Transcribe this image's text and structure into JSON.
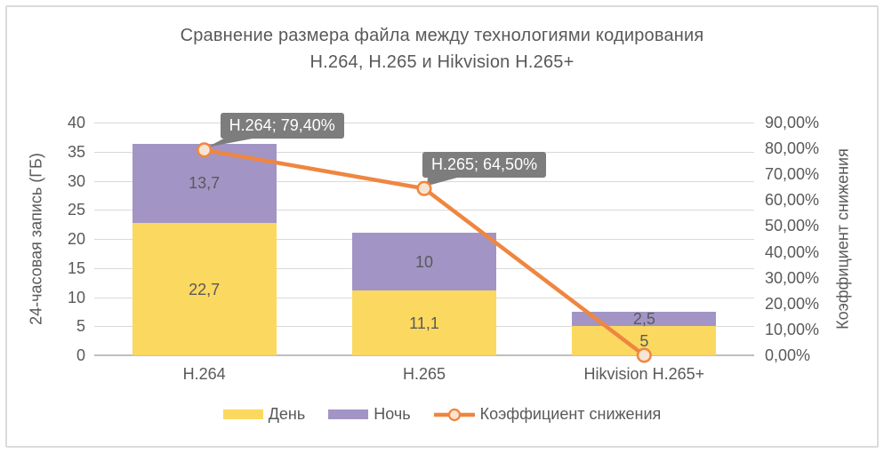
{
  "chart_data": {
    "type": "bar",
    "subtype": "stacked-bars-with-line-combo",
    "title_lines": [
      "Сравнение размера файла между технологиями кодирования",
      "H.264, H.265 и Hikvision H.265+"
    ],
    "categories": [
      "H.264",
      "H.265",
      "Hikvision H.265+"
    ],
    "series": [
      {
        "name": "День",
        "color": "#FBD860",
        "values": [
          22.7,
          11.1,
          5
        ],
        "labels": [
          "22,7",
          "11,1",
          "5"
        ]
      },
      {
        "name": "Ночь",
        "color": "#A295C5",
        "values": [
          13.7,
          10,
          2.5
        ],
        "labels": [
          "13,7",
          "10",
          "2,5"
        ]
      }
    ],
    "line": {
      "name": "Коэффициент снижения",
      "color": "#EF8640",
      "values": [
        79.4,
        64.5,
        0
      ],
      "labels": [
        "79,40%",
        "64,50%",
        "0,00%"
      ],
      "callouts": [
        {
          "point": 0,
          "text": "H.264; 79,40%"
        },
        {
          "point": 1,
          "text": "H.265; 64,50%"
        }
      ]
    },
    "left_axis": {
      "title": "24-часовая запись (ГБ)",
      "min": 0,
      "max": 40,
      "step": 5,
      "tick_labels": [
        "40",
        "35",
        "30",
        "25",
        "20",
        "15",
        "10",
        "5",
        "0"
      ]
    },
    "right_axis": {
      "title": "Коэффициент снижения",
      "min": 0,
      "max": 90,
      "step": 10,
      "tick_labels": [
        "90,00%",
        "80,00%",
        "70,00%",
        "60,00%",
        "50,00%",
        "40,00%",
        "30,00%",
        "20,00%",
        "10,00%",
        "0,00%"
      ]
    },
    "legend": {
      "position": "bottom",
      "entries": [
        "День",
        "Ночь",
        "Коэффициент снижения"
      ]
    },
    "grid": true,
    "colors": {
      "text": "#595959",
      "gridline": "#D9D9D9",
      "axis_line": "#BFBFBF",
      "callout_bg": "#7D7D7D",
      "callout_text": "#FFFFFF",
      "marker_fill": "#F8E4D2",
      "frame_border": "#DBDBDB"
    }
  }
}
